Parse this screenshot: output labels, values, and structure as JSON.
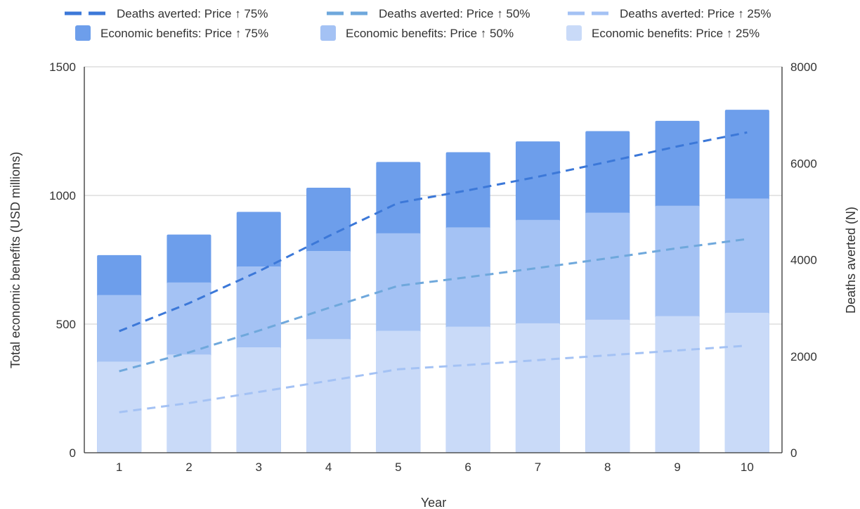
{
  "chart_data": {
    "type": "bar",
    "categories": [
      "1",
      "2",
      "3",
      "4",
      "5",
      "6",
      "7",
      "8",
      "9",
      "10"
    ],
    "xlabel": "Year",
    "ylabel": "Total economic benefits (USD millions)",
    "y2label": "Deaths averted (N)",
    "ylim": [
      0,
      1500
    ],
    "y2lim": [
      0,
      8000
    ],
    "yticks": [
      "0",
      "500",
      "1000",
      "1500"
    ],
    "y2ticks": [
      "0",
      "2000",
      "4000",
      "6000",
      "8000"
    ],
    "bars_overlaid": true,
    "grid": true,
    "legend_position": "top",
    "bar_series": [
      {
        "name": "Economic benefits: Price ↑ 75%",
        "color": "#6d9eeb",
        "values": [
          768,
          848,
          936,
          1030,
          1130,
          1168,
          1210,
          1250,
          1290,
          1333
        ]
      },
      {
        "name": "Economic benefits: Price ↑ 50%",
        "color": "#a4c2f4",
        "values": [
          613,
          662,
          724,
          784,
          853,
          876,
          905,
          933,
          960,
          988
        ]
      },
      {
        "name": "Economic benefits: Price ↑ 25%",
        "color": "#c9daf8",
        "values": [
          354,
          382,
          410,
          442,
          474,
          490,
          503,
          517,
          531,
          544
        ]
      }
    ],
    "line_series": [
      {
        "name": "Deaths averted: Price ↑ 75%",
        "color": "#3c78d8",
        "axis": "right",
        "values": [
          2520,
          3100,
          3760,
          4490,
          5180,
          5440,
          5720,
          6030,
          6350,
          6640
        ]
      },
      {
        "name": "Deaths averted: Price ↑ 50%",
        "color": "#6fa8dc",
        "axis": "right",
        "values": [
          1690,
          2080,
          2530,
          3000,
          3460,
          3640,
          3830,
          4030,
          4240,
          4430
        ]
      },
      {
        "name": "Deaths averted: Price ↑ 25%",
        "color": "#a4c2f4",
        "axis": "right",
        "values": [
          840,
          1030,
          1260,
          1490,
          1730,
          1820,
          1920,
          2020,
          2120,
          2220
        ]
      }
    ]
  }
}
